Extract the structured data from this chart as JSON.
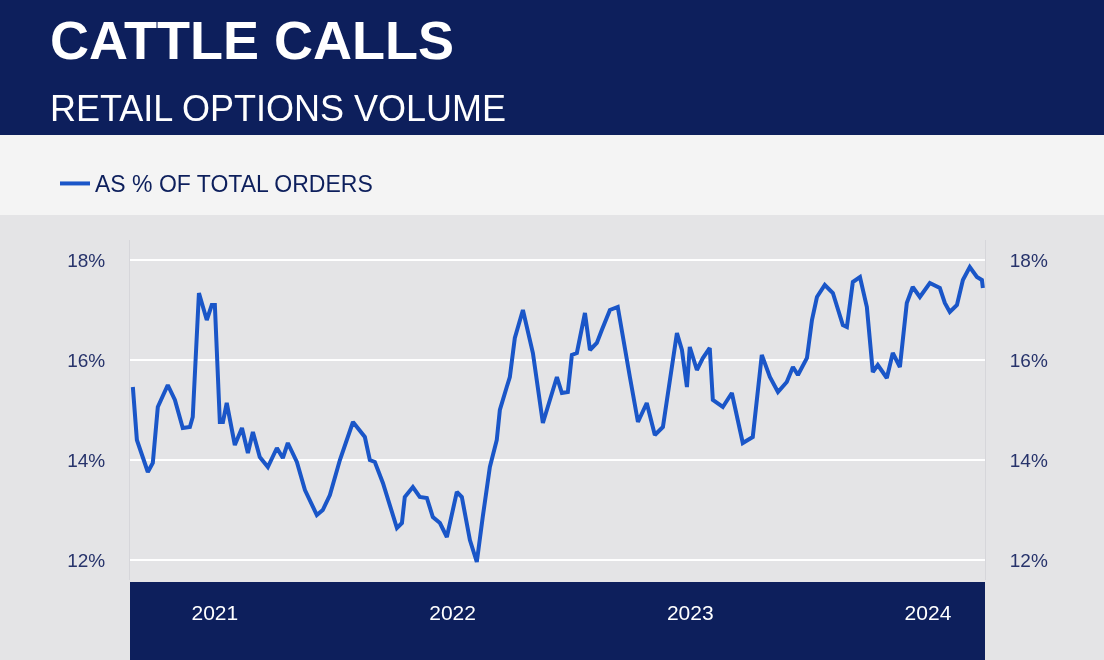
{
  "chart_data": {
    "type": "line",
    "title": "CATTLE CALLS",
    "subtitle": "RETAIL OPTIONS VOLUME",
    "x": [
      2020.655,
      2020.672,
      2020.718,
      2020.739,
      2020.76,
      2020.802,
      2020.832,
      2020.865,
      2020.895,
      2020.907,
      2020.933,
      2020.966,
      2020.987,
      2021.0,
      2021.021,
      2021.034,
      2021.05,
      2021.084,
      2021.114,
      2021.139,
      2021.16,
      2021.189,
      2021.223,
      2021.261,
      2021.286,
      2021.307,
      2021.345,
      2021.379,
      2021.429,
      2021.454,
      2021.484,
      2021.526,
      2021.581,
      2021.631,
      2021.652,
      2021.673,
      2021.707,
      2021.766,
      2021.787,
      2021.799,
      2021.833,
      2021.862,
      2021.892,
      2021.917,
      2021.947,
      2021.976,
      2022.018,
      2022.039,
      2022.073,
      2022.102,
      2022.127,
      2022.157,
      2022.186,
      2022.199,
      2022.228,
      2022.241,
      2022.262,
      2022.296,
      2022.338,
      2022.38,
      2022.439,
      2022.46,
      2022.485,
      2022.502,
      2022.523,
      2022.557,
      2022.578,
      2022.607,
      2022.628,
      2022.662,
      2022.695,
      2022.746,
      2022.78,
      2022.817,
      2022.851,
      2022.885,
      2022.944,
      2022.965,
      2022.986,
      2022.998,
      2023.028,
      2023.053,
      2023.082,
      2023.095,
      2023.137,
      2023.175,
      2023.221,
      2023.263,
      2023.301,
      2023.335,
      2023.369,
      2023.406,
      2023.432,
      2023.453,
      2023.491,
      2023.512,
      2023.533,
      2023.566,
      2023.6,
      2023.642,
      2023.659,
      2023.684,
      2023.714,
      2023.743,
      2023.768,
      2023.789,
      2023.827,
      2023.852,
      2023.882,
      2023.911,
      2023.936,
      2023.966,
      2024.008,
      2024.05,
      2024.071,
      2024.092,
      2024.122,
      2024.147,
      2024.176,
      2024.206,
      2024.227,
      2024.231
    ],
    "series": [
      {
        "name": "AS % OF TOTAL ORDERS",
        "color": "#1a56c8",
        "values": [
          15.46,
          14.4,
          13.76,
          13.94,
          15.06,
          15.5,
          15.2,
          14.64,
          14.66,
          14.86,
          17.34,
          16.8,
          17.1,
          17.1,
          14.76,
          14.76,
          15.14,
          14.3,
          14.64,
          14.14,
          14.56,
          14.06,
          13.86,
          14.24,
          14.04,
          14.34,
          13.96,
          13.4,
          12.9,
          13.0,
          13.3,
          14.0,
          14.76,
          14.46,
          14.0,
          13.96,
          13.54,
          12.64,
          12.74,
          13.26,
          13.46,
          13.26,
          13.24,
          12.86,
          12.74,
          12.46,
          13.36,
          13.26,
          12.4,
          11.96,
          12.86,
          13.86,
          14.4,
          15.0,
          15.46,
          15.66,
          16.44,
          17.0,
          16.14,
          14.74,
          15.66,
          15.34,
          15.36,
          16.1,
          16.14,
          16.94,
          16.2,
          16.34,
          16.6,
          17.0,
          17.06,
          15.66,
          14.76,
          15.14,
          14.5,
          14.66,
          16.54,
          16.2,
          15.46,
          16.26,
          15.8,
          16.04,
          16.24,
          15.2,
          15.06,
          15.34,
          14.34,
          14.46,
          16.1,
          15.66,
          15.36,
          15.56,
          15.86,
          15.7,
          16.04,
          16.8,
          17.26,
          17.5,
          17.34,
          16.7,
          16.66,
          17.56,
          17.66,
          17.06,
          15.76,
          15.9,
          15.64,
          16.14,
          15.86,
          17.14,
          17.46,
          17.26,
          17.54,
          17.44,
          17.14,
          16.96,
          17.1,
          17.6,
          17.86,
          17.66,
          17.6,
          17.44
        ]
      }
    ],
    "xlim": [
      2020.643,
      2024.24
    ],
    "xticks": [
      2021,
      2022,
      2023,
      2024
    ],
    "ylim": [
      11.6,
      18.4
    ],
    "yticks": [
      {
        "value": 12,
        "label": "12%"
      },
      {
        "value": 14,
        "label": "14%"
      },
      {
        "value": 16,
        "label": "16%"
      },
      {
        "value": 18,
        "label": "18%"
      }
    ],
    "y2lim": [
      11.6,
      18.4
    ],
    "y2ticks": [
      {
        "value": 12,
        "label": "12%"
      },
      {
        "value": 14,
        "label": "14%"
      },
      {
        "value": 16,
        "label": "16%"
      },
      {
        "value": 18,
        "label": "18%"
      }
    ],
    "grid": "y",
    "legend": "top left",
    "marker": "none",
    "line_style": "solid"
  }
}
